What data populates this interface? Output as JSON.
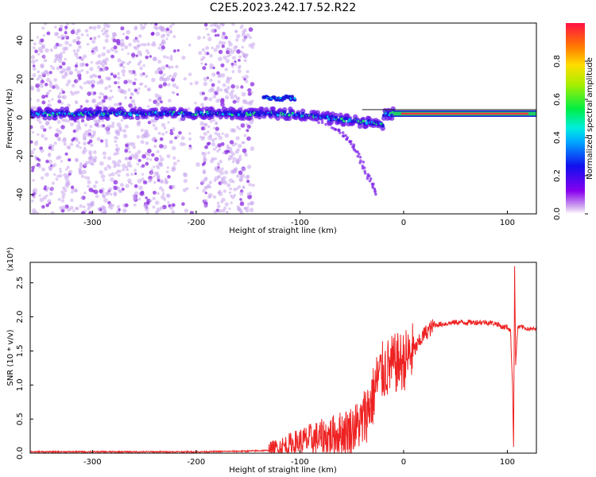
{
  "figure_title": "C2E5.2023.242.17.52.R22",
  "colors": {
    "snr_line": "#ee2222",
    "axis": "#000000",
    "scatter": "#8a2be2"
  },
  "chart_data": [
    {
      "type": "heatmap",
      "xlabel": "Height of straight line (km)",
      "ylabel": "Frequency (Hz)",
      "xlim": [
        -360,
        128
      ],
      "ylim": [
        -50,
        49
      ],
      "x_ticks": [
        -300,
        -200,
        -100,
        0,
        100
      ],
      "y_ticks": [
        -40,
        -20,
        0,
        20,
        40
      ],
      "colorbar": {
        "label": "Normalized spectral amplitude",
        "range": [
          0,
          1
        ],
        "ticks": [
          "0.0",
          "0.2",
          "0.4",
          "0.6",
          "0.8"
        ],
        "ticks_values": [
          0.0,
          0.2,
          0.4,
          0.6,
          0.8
        ],
        "colormap": "rainbow (violet to red)"
      },
      "features": {
        "scattered_noise_x_range": [
          -360,
          -145
        ],
        "main_band_frequency": 2,
        "main_band_x_range": [
          -360,
          128
        ],
        "steady_tone_x_range": [
          -10,
          128
        ],
        "descending_branch": [
          [
            -90,
            0
          ],
          [
            -70,
            -4
          ],
          [
            -55,
            -10
          ],
          [
            -45,
            -18
          ],
          [
            -35,
            -30
          ],
          [
            -25,
            -40
          ]
        ],
        "upper_branch": [
          [
            -135,
            10
          ],
          [
            -105,
            10
          ]
        ]
      }
    },
    {
      "type": "line",
      "xlabel": "Height of straight line (km)",
      "ylabel": "SNR (10 * v/v)",
      "y_multiplier": "(x10⁴)",
      "xlim": [
        -360,
        128
      ],
      "ylim": [
        0,
        2.8
      ],
      "x_ticks": [
        -300,
        -200,
        -100,
        0,
        100
      ],
      "y_ticks": [
        0.0,
        0.5,
        1.0,
        1.5,
        2.0,
        2.5
      ],
      "series": [
        {
          "x": [
            -360,
            -300,
            -200,
            -150,
            -130,
            -110,
            -90,
            -70,
            -50,
            -40,
            -30,
            -25,
            -20,
            -10,
            0,
            10,
            20,
            30,
            40,
            50,
            60,
            70,
            80,
            90,
            95,
            100,
            103,
            105,
            106,
            107,
            108,
            110,
            115,
            120,
            128
          ],
          "y": [
            0.02,
            0.02,
            0.02,
            0.03,
            0.04,
            0.12,
            0.2,
            0.25,
            0.35,
            0.45,
            0.8,
            1.1,
            1.2,
            1.3,
            1.35,
            1.5,
            1.75,
            1.88,
            1.9,
            1.92,
            1.92,
            1.92,
            1.92,
            1.9,
            1.85,
            1.85,
            1.8,
            1.0,
            0.1,
            2.75,
            1.3,
            1.85,
            1.85,
            1.82,
            1.82
          ]
        }
      ]
    }
  ]
}
